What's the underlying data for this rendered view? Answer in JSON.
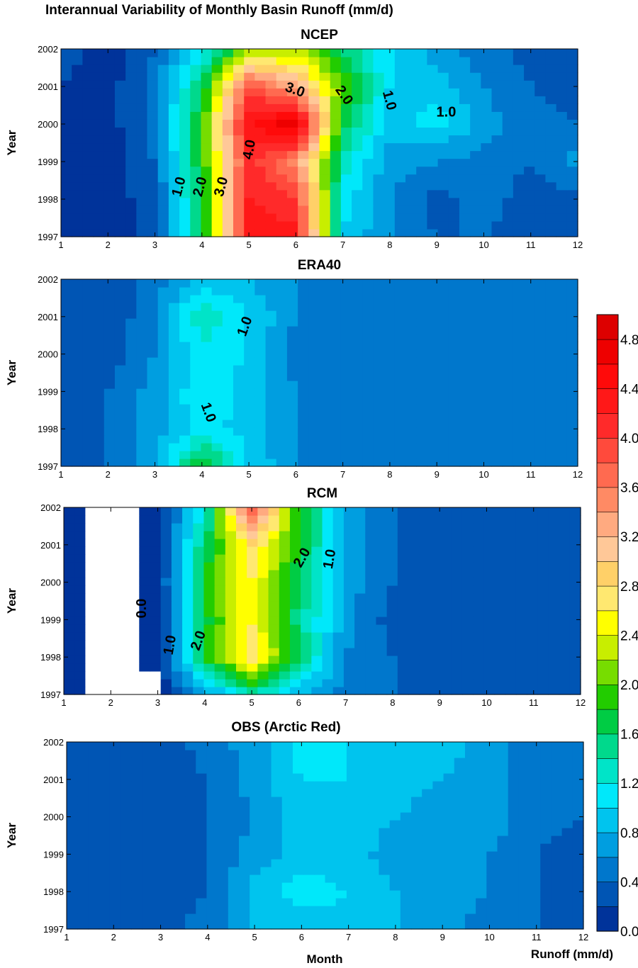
{
  "title": "Interannual Variability of Monthly Basin Runoff (mm/d)",
  "xlabel": "Month",
  "ylabel": "Year",
  "colorbar": {
    "label": "Runoff (mm/d)",
    "levels": [
      0.0,
      0.2,
      0.4,
      0.6,
      0.8,
      1.0,
      1.2,
      1.4,
      1.6,
      1.8,
      2.0,
      2.2,
      2.4,
      2.6,
      2.8,
      3.0,
      3.2,
      3.4,
      3.6,
      3.8,
      4.0,
      4.2,
      4.4,
      4.6,
      4.8,
      5.0
    ],
    "tick_labels": [
      "0.0",
      "0.4",
      "0.8",
      "1.2",
      "1.6",
      "2.0",
      "2.4",
      "2.8",
      "3.2",
      "3.6",
      "4.0",
      "4.4",
      "4.8"
    ],
    "colors": [
      "#00339a",
      "#0055b4",
      "#0077cc",
      "#009ee0",
      "#00c4ee",
      "#00e8fa",
      "#00e4c8",
      "#00d98c",
      "#00cc44",
      "#22cc00",
      "#77dd00",
      "#c8ee00",
      "#ffff00",
      "#ffe870",
      "#ffd068",
      "#ffc898",
      "#ffaa80",
      "#ff8a64",
      "#ff6a50",
      "#ff4a3c",
      "#ff2a2a",
      "#ff1818",
      "#ff0a0a",
      "#ee0000",
      "#dd0000"
    ]
  },
  "chart_data": [
    {
      "type": "heatmap",
      "title": "NCEP",
      "x": [
        1,
        2,
        3,
        4,
        5,
        6,
        7,
        8,
        9,
        10,
        11,
        12
      ],
      "y": [
        1997,
        1998,
        1999,
        2000,
        2001,
        2002
      ],
      "z": [
        [
          0.1,
          0.1,
          0.3,
          1.6,
          4.4,
          4.3,
          1.0,
          0.6,
          0.4,
          0.4,
          0.3,
          0.3
        ],
        [
          0.1,
          0.1,
          0.3,
          1.7,
          4.2,
          4.0,
          1.1,
          0.6,
          0.3,
          0.5,
          0.3,
          0.3
        ],
        [
          0.1,
          0.1,
          0.4,
          1.8,
          4.1,
          3.5,
          1.3,
          0.7,
          0.6,
          0.5,
          0.4,
          0.7
        ],
        [
          0.1,
          0.1,
          0.5,
          1.9,
          4.4,
          4.8,
          1.7,
          0.9,
          1.1,
          0.7,
          0.5,
          0.4
        ],
        [
          0.2,
          0.1,
          0.5,
          1.6,
          3.9,
          3.3,
          2.0,
          1.0,
          0.9,
          0.6,
          0.4,
          0.3
        ],
        [
          0.3,
          0.1,
          0.4,
          1.1,
          2.1,
          2.2,
          1.6,
          1.0,
          0.7,
          0.5,
          0.3,
          0.2
        ]
      ],
      "contour_labels": [
        "1.0",
        "2.0",
        "3.0",
        "4.0",
        "3.0",
        "2.0",
        "1.0",
        "1.0"
      ],
      "xlim": [
        1,
        12
      ],
      "ylim": [
        1997,
        2002
      ]
    },
    {
      "type": "heatmap",
      "title": "ERA40",
      "x": [
        1,
        2,
        3,
        4,
        5,
        6,
        7,
        8,
        9,
        10,
        11,
        12
      ],
      "y": [
        1997,
        1998,
        1999,
        2000,
        2001,
        2002
      ],
      "z": [
        [
          0.3,
          0.4,
          0.7,
          1.9,
          1.0,
          0.6,
          0.6,
          0.5,
          0.4,
          0.4,
          0.4,
          0.4
        ],
        [
          0.3,
          0.4,
          0.7,
          1.1,
          0.9,
          0.6,
          0.6,
          0.5,
          0.4,
          0.4,
          0.4,
          0.4
        ],
        [
          0.4,
          0.4,
          0.7,
          1.2,
          0.9,
          0.6,
          0.5,
          0.5,
          0.5,
          0.4,
          0.4,
          0.5
        ],
        [
          0.3,
          0.3,
          0.6,
          1.1,
          1.0,
          0.5,
          0.5,
          0.5,
          0.5,
          0.4,
          0.4,
          0.4
        ],
        [
          0.2,
          0.2,
          0.6,
          1.4,
          1.0,
          0.6,
          0.5,
          0.5,
          0.5,
          0.4,
          0.4,
          0.4
        ],
        [
          0.2,
          0.2,
          0.5,
          0.9,
          0.8,
          0.6,
          0.6,
          0.5,
          0.5,
          0.5,
          0.4,
          0.4
        ]
      ],
      "contour_labels": [
        "1.0",
        "1.0"
      ],
      "xlim": [
        1,
        12
      ],
      "ylim": [
        1997,
        2002
      ]
    },
    {
      "type": "heatmap",
      "title": "RCM",
      "x": [
        1,
        2,
        3,
        4,
        5,
        6,
        7,
        8,
        9,
        10,
        11,
        12
      ],
      "y": [
        1997,
        1998,
        1999,
        2000,
        2001,
        2002
      ],
      "z": [
        [
          0.1,
          0.0,
          0.0,
          0.6,
          1.4,
          0.8,
          0.5,
          0.4,
          0.3,
          0.2,
          0.2,
          0.2
        ],
        [
          0.1,
          0.0,
          0.1,
          1.8,
          2.8,
          1.6,
          0.6,
          0.4,
          0.3,
          0.2,
          0.2,
          0.2
        ],
        [
          0.1,
          0.0,
          0.1,
          1.7,
          2.6,
          1.5,
          0.7,
          0.3,
          0.2,
          0.2,
          0.2,
          0.2
        ],
        [
          0.1,
          0.0,
          0.1,
          1.8,
          2.6,
          1.6,
          0.7,
          0.4,
          0.3,
          0.2,
          0.2,
          0.2
        ],
        [
          0.1,
          0.0,
          0.1,
          1.6,
          2.8,
          1.8,
          0.8,
          0.4,
          0.3,
          0.3,
          0.2,
          0.2
        ],
        [
          0.1,
          0.0,
          0.1,
          1.2,
          3.9,
          1.8,
          0.8,
          0.4,
          0.3,
          0.3,
          0.2,
          0.2
        ]
      ],
      "contour_labels": [
        "0.0",
        "1.0",
        "2.0",
        "2.0",
        "1.0"
      ],
      "xlim": [
        1,
        12
      ],
      "ylim": [
        1997,
        2002
      ]
    },
    {
      "type": "heatmap",
      "title": "OBS (Arctic Red)",
      "x": [
        1,
        2,
        3,
        4,
        5,
        6,
        7,
        8,
        9,
        10,
        11,
        12
      ],
      "y": [
        1997,
        1998,
        1999,
        2000,
        2001,
        2002
      ],
      "z": [
        [
          0.3,
          0.3,
          0.3,
          0.5,
          0.8,
          0.9,
          0.9,
          0.8,
          0.7,
          0.5,
          0.4,
          0.4
        ],
        [
          0.3,
          0.3,
          0.3,
          0.4,
          0.9,
          1.1,
          1.0,
          0.8,
          0.7,
          0.6,
          0.4,
          0.3
        ],
        [
          0.2,
          0.3,
          0.3,
          0.4,
          0.7,
          0.9,
          0.9,
          0.7,
          0.6,
          0.6,
          0.4,
          0.3
        ],
        [
          0.2,
          0.2,
          0.2,
          0.4,
          0.6,
          0.9,
          0.9,
          0.8,
          0.7,
          0.7,
          0.5,
          0.4
        ],
        [
          0.3,
          0.2,
          0.2,
          0.4,
          0.7,
          1.0,
          1.0,
          0.9,
          0.8,
          0.7,
          0.5,
          0.4
        ],
        [
          0.3,
          0.3,
          0.3,
          0.5,
          0.7,
          1.1,
          1.0,
          0.9,
          0.9,
          0.7,
          0.5,
          0.4
        ]
      ],
      "contour_labels": [],
      "xlim": [
        1,
        12
      ],
      "ylim": [
        1997,
        2002
      ]
    }
  ]
}
